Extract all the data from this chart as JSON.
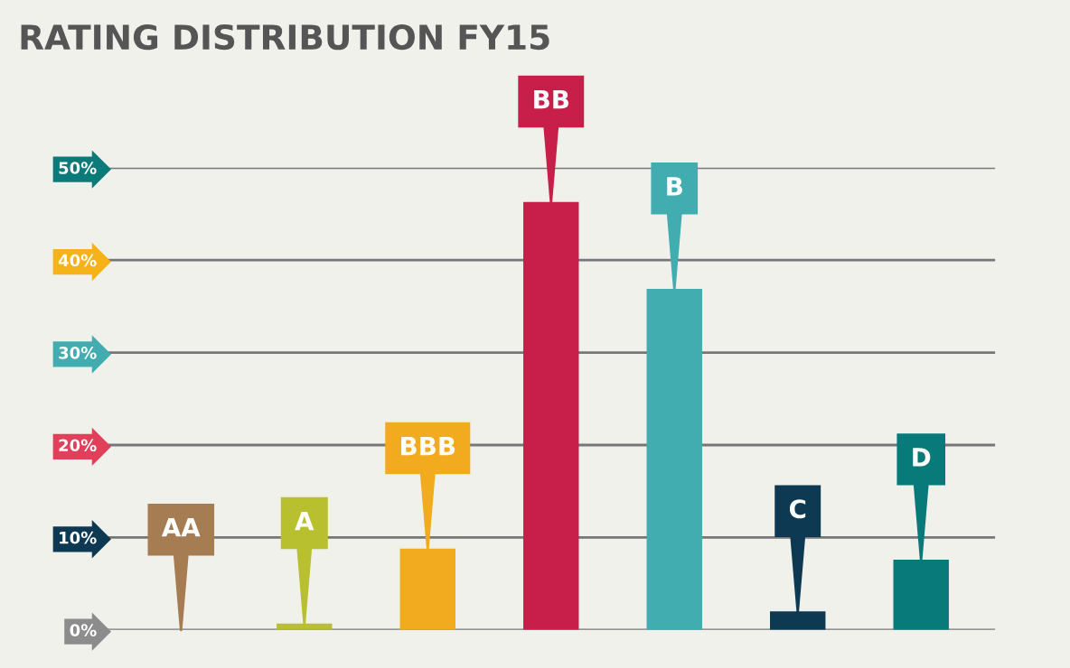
{
  "chart_data": {
    "type": "bar",
    "title": "RATING DISTRIBUTION FY15",
    "categories": [
      "AA",
      "A",
      "BBB",
      "BB",
      "B",
      "C",
      "D"
    ],
    "values": [
      0,
      0.7,
      8.8,
      46.3,
      36.9,
      2.0,
      7.6
    ],
    "colors": [
      "#a67c52",
      "#b8c030",
      "#f2ab1e",
      "#c81e4a",
      "#42adb0",
      "#0d3a52",
      "#097a7a"
    ],
    "ylim": [
      0,
      50
    ],
    "yticks": [
      {
        "value": 0,
        "label": "0%"
      },
      {
        "value": 10,
        "label": "10%"
      },
      {
        "value": 20,
        "label": "20%"
      },
      {
        "value": 30,
        "label": "30%"
      },
      {
        "value": 40,
        "label": "40%"
      },
      {
        "value": 50,
        "label": "50%"
      }
    ],
    "grid": "y"
  }
}
